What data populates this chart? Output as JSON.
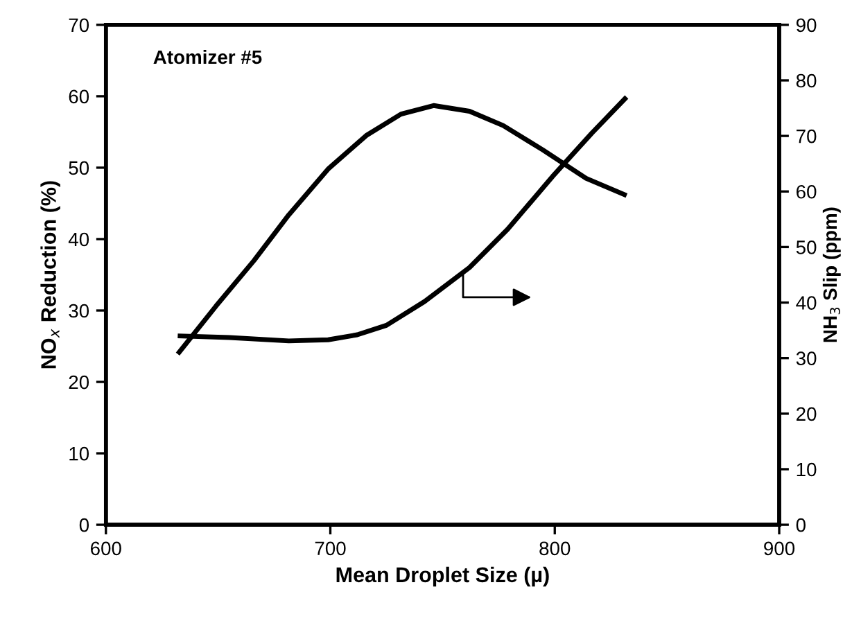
{
  "chart_data": {
    "type": "line",
    "xlabel": "Mean Droplet Size (µ)",
    "ylabel": "NO$_{x}$ Reduction (%)",
    "y2label": "NH$_{3}$ Slip (ppm)",
    "annotations": [
      "Atomizer #5"
    ],
    "xlim": [
      600,
      900
    ],
    "xticks": [
      600,
      700,
      800,
      900
    ],
    "ylim": [
      0,
      70
    ],
    "yticks": [
      0,
      10,
      20,
      30,
      40,
      50,
      60,
      70
    ],
    "y2lim": [
      0,
      90
    ],
    "y2ticks": [
      0,
      10,
      20,
      30,
      40,
      50,
      60,
      70,
      80,
      90
    ],
    "grid": false,
    "legend": false,
    "marker": "none",
    "line_style": "solid",
    "series": [
      {
        "color": "#000000",
        "x": [
          632,
          649,
          666,
          681.5,
          699,
          716,
          731.5,
          746,
          762,
          777,
          794.6,
          814,
          832
        ],
        "values": [
          23.9,
          30.6,
          37.0,
          43.4,
          49.8,
          54.5,
          57.5,
          58.7,
          57.9,
          55.9,
          52.5,
          48.5,
          46.1
        ]
      },
      {
        "color": "#000000",
        "axis": "y2",
        "x": [
          632,
          655,
          681.5,
          699,
          712,
          725,
          742,
          762,
          779,
          799,
          816.5,
          832
        ],
        "values": [
          34.0,
          33.7,
          33.1,
          33.3,
          34.2,
          35.9,
          40.2,
          46.3,
          53.2,
          62.7,
          70.5,
          77.0
        ]
      }
    ]
  }
}
